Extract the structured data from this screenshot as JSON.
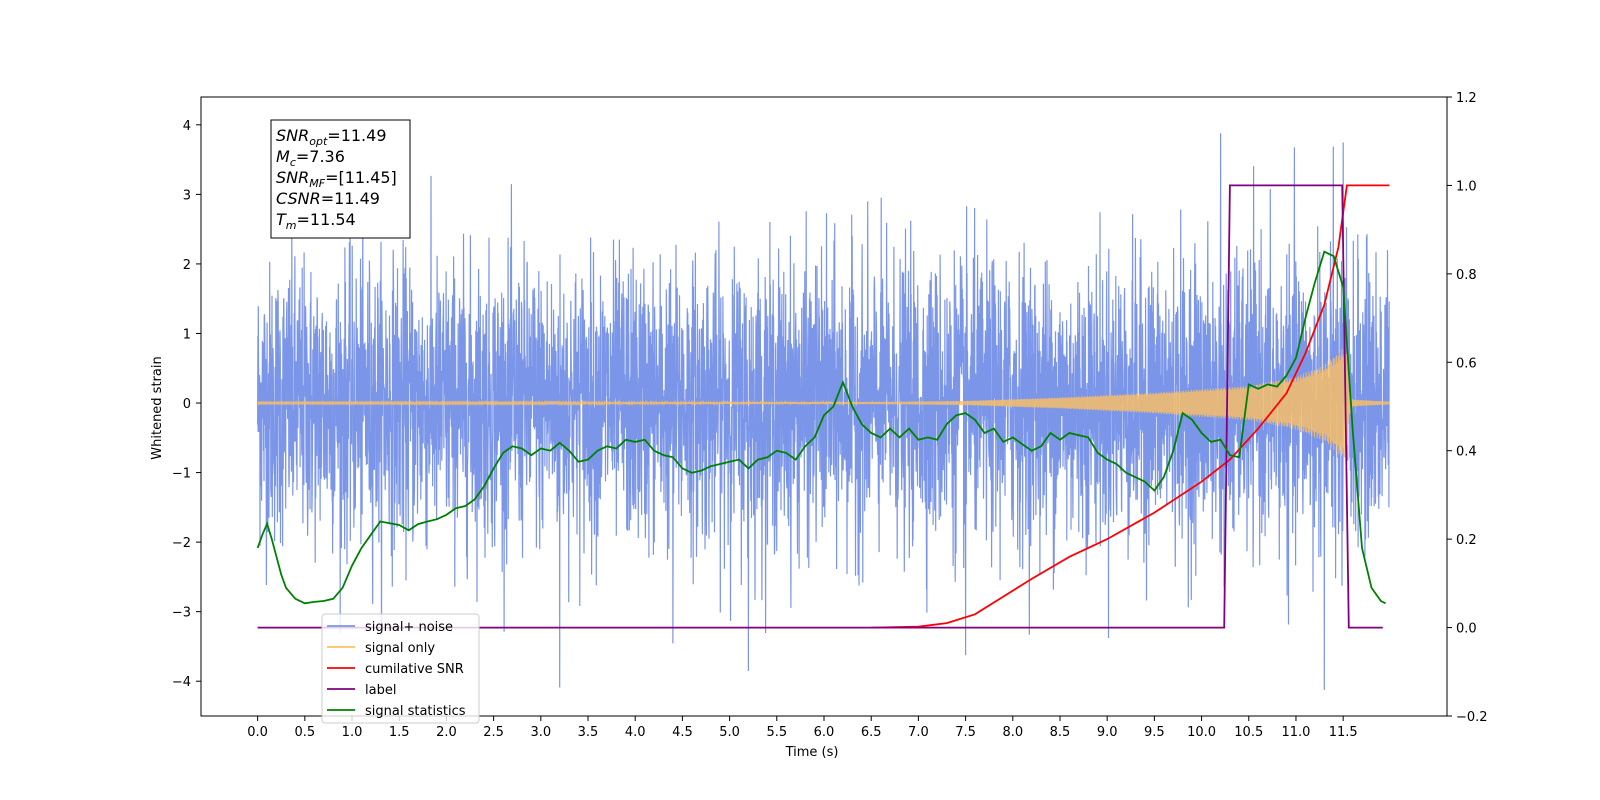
{
  "chart_data": {
    "type": "line",
    "xlabel": "Time (s)",
    "ylabel": "Whitened strain",
    "xlim": [
      -0.6,
      12.6
    ],
    "ylim": [
      -4.5,
      4.4
    ],
    "y2lim": [
      -0.2,
      1.2
    ],
    "x_ticks": [
      "0.0",
      "0.5",
      "1.0",
      "1.5",
      "2.0",
      "2.5",
      "3.0",
      "3.5",
      "4.0",
      "4.5",
      "5.0",
      "5.5",
      "6.0",
      "6.5",
      "7.0",
      "7.5",
      "8.0",
      "8.5",
      "9.0",
      "9.5",
      "10.0",
      "10.5",
      "11.0",
      "11.5"
    ],
    "y_ticks": [
      "−4",
      "−3",
      "−2",
      "−1",
      "0",
      "1",
      "2",
      "3",
      "4"
    ],
    "y2_ticks": [
      "−0.2",
      "0.0",
      "0.2",
      "0.4",
      "0.6",
      "0.8",
      "1.0",
      "1.2"
    ],
    "legend_placement": "lower-left",
    "grid": false,
    "info_box": {
      "lines": [
        {
          "main": "SNR",
          "sub": "opt",
          "value": "=11.49"
        },
        {
          "main": "M",
          "sub": "c",
          "value": "=7.36"
        },
        {
          "main": "SNR",
          "sub": "MF",
          "value": "=[11.45]"
        },
        {
          "main": "CSNR",
          "sub": "",
          "value": "=11.49"
        },
        {
          "main": "T",
          "sub": "m",
          "value": "=11.54"
        }
      ]
    },
    "series": [
      {
        "name": "signal+ noise",
        "color": "#7b96e8",
        "axis": "left",
        "x_range": [
          0.0,
          11.99
        ],
        "noise_sigma": 1.0,
        "peaks": [
          {
            "x": 10.2,
            "y": 4.05
          },
          {
            "x": 3.2,
            "y": -4.1
          },
          {
            "x": 5.2,
            "y": -3.85
          },
          {
            "x": 7.5,
            "y": -3.65
          },
          {
            "x": 11.3,
            "y": -3.6
          },
          {
            "x": 4.4,
            "y": -3.45
          },
          {
            "x": 11.5,
            "y": 3.45
          }
        ]
      },
      {
        "name": "signal only",
        "color": "#ffc060",
        "axis": "left",
        "x_range": [
          0.0,
          11.99
        ],
        "envelope": [
          [
            0.0,
            0.01
          ],
          [
            6.5,
            0.015
          ],
          [
            7.5,
            0.03
          ],
          [
            8.5,
            0.08
          ],
          [
            9.5,
            0.15
          ],
          [
            10.5,
            0.25
          ],
          [
            11.0,
            0.38
          ],
          [
            11.3,
            0.55
          ],
          [
            11.5,
            0.8
          ],
          [
            11.54,
            0.85
          ],
          [
            11.56,
            0.2
          ],
          [
            11.6,
            0.05
          ],
          [
            11.99,
            0.02
          ]
        ]
      },
      {
        "name": "cumilative SNR",
        "color": "#ff0000",
        "axis": "right",
        "points": [
          [
            6.5,
            0.0
          ],
          [
            7.0,
            0.002
          ],
          [
            7.3,
            0.01
          ],
          [
            7.6,
            0.03
          ],
          [
            7.9,
            0.07
          ],
          [
            8.2,
            0.11
          ],
          [
            8.6,
            0.16
          ],
          [
            9.0,
            0.2
          ],
          [
            9.5,
            0.26
          ],
          [
            10.0,
            0.33
          ],
          [
            10.3,
            0.38
          ],
          [
            10.6,
            0.45
          ],
          [
            10.9,
            0.53
          ],
          [
            11.1,
            0.62
          ],
          [
            11.3,
            0.73
          ],
          [
            11.45,
            0.86
          ],
          [
            11.54,
            1.0
          ],
          [
            11.99,
            1.0
          ]
        ]
      },
      {
        "name": "label",
        "color": "#800080",
        "axis": "right",
        "points": [
          [
            0.0,
            0.0
          ],
          [
            10.24,
            0.0
          ],
          [
            10.3,
            1.0
          ],
          [
            11.49,
            1.0
          ],
          [
            11.56,
            0.0
          ],
          [
            11.92,
            0.0
          ]
        ]
      },
      {
        "name": "signal statistics",
        "color": "#008000",
        "axis": "right",
        "points": [
          [
            0.0,
            0.18
          ],
          [
            0.05,
            0.21
          ],
          [
            0.1,
            0.235
          ],
          [
            0.15,
            0.2
          ],
          [
            0.2,
            0.16
          ],
          [
            0.25,
            0.12
          ],
          [
            0.3,
            0.09
          ],
          [
            0.4,
            0.065
          ],
          [
            0.5,
            0.055
          ],
          [
            0.6,
            0.058
          ],
          [
            0.7,
            0.06
          ],
          [
            0.8,
            0.065
          ],
          [
            0.9,
            0.09
          ],
          [
            1.0,
            0.14
          ],
          [
            1.1,
            0.18
          ],
          [
            1.2,
            0.21
          ],
          [
            1.3,
            0.24
          ],
          [
            1.4,
            0.236
          ],
          [
            1.5,
            0.232
          ],
          [
            1.6,
            0.22
          ],
          [
            1.7,
            0.234
          ],
          [
            1.8,
            0.24
          ],
          [
            1.9,
            0.245
          ],
          [
            2.0,
            0.255
          ],
          [
            2.1,
            0.27
          ],
          [
            2.2,
            0.275
          ],
          [
            2.3,
            0.29
          ],
          [
            2.4,
            0.32
          ],
          [
            2.5,
            0.36
          ],
          [
            2.6,
            0.395
          ],
          [
            2.7,
            0.41
          ],
          [
            2.8,
            0.405
          ],
          [
            2.9,
            0.39
          ],
          [
            3.0,
            0.405
          ],
          [
            3.1,
            0.4
          ],
          [
            3.2,
            0.418
          ],
          [
            3.3,
            0.4
          ],
          [
            3.4,
            0.375
          ],
          [
            3.5,
            0.38
          ],
          [
            3.6,
            0.4
          ],
          [
            3.7,
            0.41
          ],
          [
            3.8,
            0.405
          ],
          [
            3.9,
            0.425
          ],
          [
            4.0,
            0.42
          ],
          [
            4.1,
            0.425
          ],
          [
            4.2,
            0.4
          ],
          [
            4.3,
            0.39
          ],
          [
            4.4,
            0.385
          ],
          [
            4.5,
            0.36
          ],
          [
            4.6,
            0.35
          ],
          [
            4.7,
            0.355
          ],
          [
            4.8,
            0.365
          ],
          [
            4.9,
            0.37
          ],
          [
            5.0,
            0.375
          ],
          [
            5.1,
            0.38
          ],
          [
            5.2,
            0.36
          ],
          [
            5.3,
            0.38
          ],
          [
            5.4,
            0.385
          ],
          [
            5.5,
            0.4
          ],
          [
            5.6,
            0.395
          ],
          [
            5.7,
            0.38
          ],
          [
            5.8,
            0.41
          ],
          [
            5.9,
            0.43
          ],
          [
            6.0,
            0.48
          ],
          [
            6.1,
            0.5
          ],
          [
            6.2,
            0.555
          ],
          [
            6.3,
            0.5
          ],
          [
            6.4,
            0.46
          ],
          [
            6.5,
            0.44
          ],
          [
            6.6,
            0.43
          ],
          [
            6.7,
            0.45
          ],
          [
            6.8,
            0.43
          ],
          [
            6.9,
            0.45
          ],
          [
            7.0,
            0.425
          ],
          [
            7.1,
            0.43
          ],
          [
            7.2,
            0.425
          ],
          [
            7.3,
            0.46
          ],
          [
            7.4,
            0.48
          ],
          [
            7.5,
            0.485
          ],
          [
            7.6,
            0.47
          ],
          [
            7.7,
            0.44
          ],
          [
            7.8,
            0.45
          ],
          [
            7.9,
            0.42
          ],
          [
            8.0,
            0.43
          ],
          [
            8.1,
            0.415
          ],
          [
            8.2,
            0.4
          ],
          [
            8.3,
            0.41
          ],
          [
            8.4,
            0.44
          ],
          [
            8.5,
            0.425
          ],
          [
            8.6,
            0.44
          ],
          [
            8.7,
            0.435
          ],
          [
            8.8,
            0.43
          ],
          [
            8.9,
            0.395
          ],
          [
            9.0,
            0.38
          ],
          [
            9.1,
            0.37
          ],
          [
            9.2,
            0.35
          ],
          [
            9.3,
            0.34
          ],
          [
            9.4,
            0.33
          ],
          [
            9.5,
            0.31
          ],
          [
            9.6,
            0.34
          ],
          [
            9.7,
            0.4
          ],
          [
            9.8,
            0.485
          ],
          [
            9.9,
            0.47
          ],
          [
            10.0,
            0.44
          ],
          [
            10.1,
            0.42
          ],
          [
            10.2,
            0.425
          ],
          [
            10.3,
            0.39
          ],
          [
            10.4,
            0.385
          ],
          [
            10.5,
            0.55
          ],
          [
            10.6,
            0.54
          ],
          [
            10.7,
            0.55
          ],
          [
            10.8,
            0.545
          ],
          [
            10.9,
            0.57
          ],
          [
            11.0,
            0.61
          ],
          [
            11.1,
            0.7
          ],
          [
            11.2,
            0.78
          ],
          [
            11.3,
            0.85
          ],
          [
            11.4,
            0.84
          ],
          [
            11.5,
            0.77
          ],
          [
            11.6,
            0.45
          ],
          [
            11.7,
            0.18
          ],
          [
            11.8,
            0.09
          ],
          [
            11.9,
            0.06
          ],
          [
            11.95,
            0.055
          ]
        ]
      }
    ]
  },
  "legend": {
    "items": [
      {
        "label": "signal+ noise",
        "color": "#7b96e8"
      },
      {
        "label": "signal only",
        "color": "#ffc060"
      },
      {
        "label": "cumilative SNR",
        "color": "#ff0000"
      },
      {
        "label": "label",
        "color": "#800080"
      },
      {
        "label": "signal statistics",
        "color": "#008000"
      }
    ]
  }
}
